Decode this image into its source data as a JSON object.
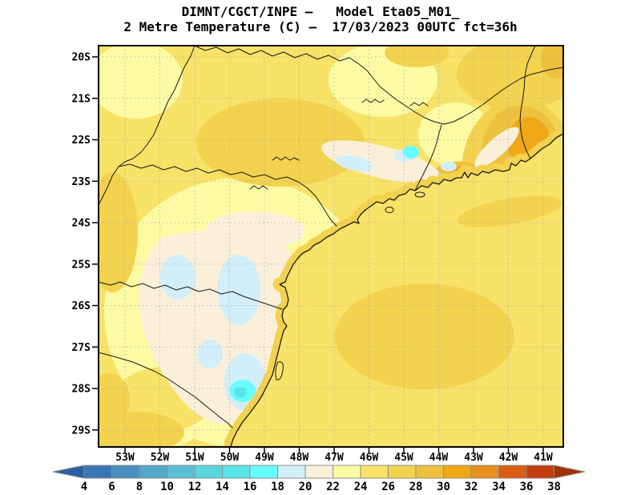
{
  "title": {
    "line1": "DIMNT/CGCT/INPE –   Model Eta05_M01_",
    "line2": "2 Metre Temperature (C) –  17/03/2023 00UTC fct=36h"
  },
  "map": {
    "lat_tick_labels": [
      "20S",
      "21S",
      "22S",
      "23S",
      "24S",
      "25S",
      "26S",
      "27S",
      "28S",
      "29S"
    ],
    "lon_tick_labels": [
      "53W",
      "52W",
      "51W",
      "50W",
      "49W",
      "48W",
      "47W",
      "46W",
      "45W",
      "44W",
      "43W",
      "42W",
      "41W"
    ]
  },
  "colorbar": {
    "tick_labels": [
      "4",
      "6",
      "8",
      "10",
      "12",
      "14",
      "16",
      "18",
      "20",
      "22",
      "24",
      "26",
      "28",
      "30",
      "32",
      "34",
      "36",
      "38"
    ],
    "cell_colors": [
      "#3a76b4",
      "#4891c0",
      "#52a7cb",
      "#5abfd6",
      "#59d6e0",
      "#59e5ec",
      "#67fdff",
      "#d2eef9",
      "#faf0da",
      "#fcfba4",
      "#f8e268",
      "#f2d24e",
      "#edc13c",
      "#f0a716",
      "#e88e1c",
      "#db5c14",
      "#c23c0d"
    ],
    "arrow_left_color": "#2b5fa4",
    "arrow_right_color": "#a33106"
  },
  "palette": {
    "t14_16": "#59e5ec",
    "t16_18": "#67fdff",
    "t18_20": "#d2eef9",
    "t20_22": "#faf0da",
    "t22_24": "#fcfba4",
    "t24_26": "#f8e268",
    "t26_28": "#f2d24e",
    "t28_30": "#edc13c",
    "t30_32": "#f0a716"
  }
}
